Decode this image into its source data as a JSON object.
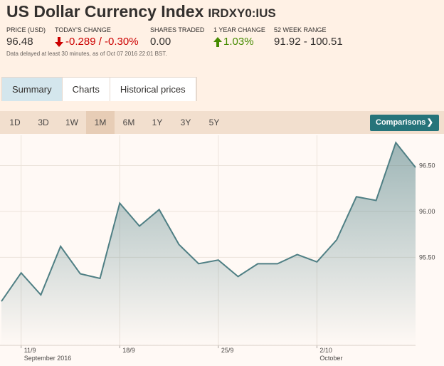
{
  "header": {
    "title": "US Dollar Currency Index",
    "symbol": "IRDXY0:IUS",
    "stats": [
      {
        "label": "PRICE (USD)",
        "value": "96.48"
      },
      {
        "label": "TODAY'S CHANGE",
        "value": "-0.289 / -0.30%"
      },
      {
        "label": "SHARES TRADED",
        "value": "0.00"
      },
      {
        "label": "1 YEAR CHANGE",
        "value": "1.03%"
      },
      {
        "label": "52 WEEK RANGE",
        "value": "91.92 - 100.51"
      }
    ],
    "note": "Data delayed at least 30 minutes, as of Oct 07 2016 22:01 BST."
  },
  "tabs": [
    "Summary",
    "Charts",
    "Historical prices"
  ],
  "ranges": [
    "1D",
    "3D",
    "1W",
    "1M",
    "6M",
    "1Y",
    "3Y",
    "5Y"
  ],
  "comparisons": "Comparisons",
  "chart_data": {
    "type": "area",
    "categories": [
      null,
      "11/9",
      null,
      null,
      null,
      null,
      "18/9",
      null,
      null,
      null,
      null,
      "25/9",
      null,
      null,
      null,
      null,
      "2/10",
      null,
      null,
      null,
      null,
      null
    ],
    "category_groups": [
      null,
      "September 2016",
      null,
      null,
      null,
      null,
      null,
      null,
      null,
      null,
      null,
      null,
      null,
      null,
      null,
      null,
      "October",
      null,
      null,
      null,
      null,
      null
    ],
    "values": [
      95.02,
      95.33,
      95.09,
      95.62,
      95.32,
      95.27,
      96.09,
      95.84,
      96.02,
      95.64,
      95.43,
      95.47,
      95.29,
      95.43,
      95.43,
      95.53,
      95.45,
      95.69,
      96.16,
      96.12,
      96.75,
      96.48
    ],
    "color": "#4f7f84",
    "ylim": [
      94.54,
      96.83
    ],
    "yticks": [
      {
        "value": 95.5,
        "label": "95.50"
      },
      {
        "value": 96,
        "label": "96.00"
      },
      {
        "value": 96.5,
        "label": "96.50"
      }
    ],
    "grid": true
  }
}
